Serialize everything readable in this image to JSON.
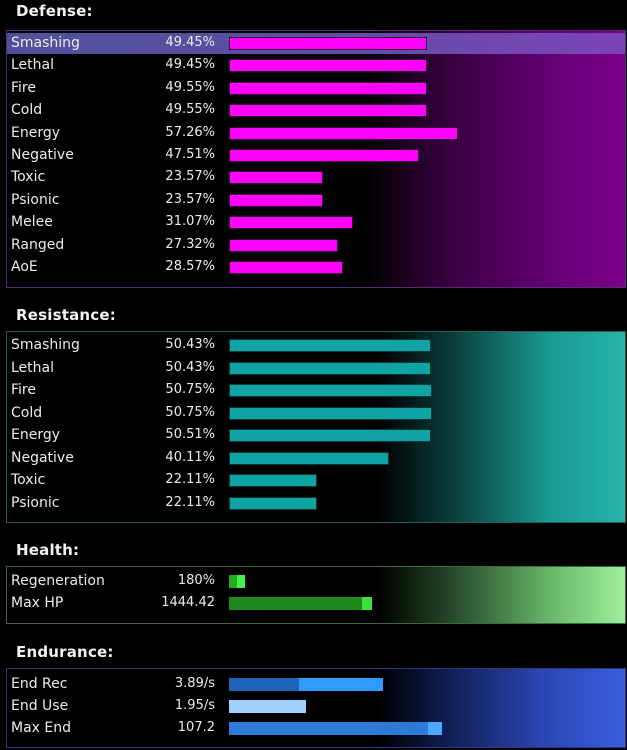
{
  "colors": {
    "defense_bar": "#ff00ff",
    "resistance_bar": "#0fa3a3",
    "health_bar": "#1e8a1e",
    "health_accent": "#3ee03e",
    "endurance_bar": "#2a7fd4",
    "endurance_accent": "#2f9bff"
  },
  "defense": {
    "title": "Defense:",
    "rows": [
      {
        "label": "Smashing",
        "value": "49.45%",
        "pct": 49.45
      },
      {
        "label": "Lethal",
        "value": "49.45%",
        "pct": 49.45
      },
      {
        "label": "Fire",
        "value": "49.55%",
        "pct": 49.55
      },
      {
        "label": "Cold",
        "value": "49.55%",
        "pct": 49.55
      },
      {
        "label": "Energy",
        "value": "57.26%",
        "pct": 57.26
      },
      {
        "label": "Negative",
        "value": "47.51%",
        "pct": 47.51
      },
      {
        "label": "Toxic",
        "value": "23.57%",
        "pct": 23.57
      },
      {
        "label": "Psionic",
        "value": "23.57%",
        "pct": 23.57
      },
      {
        "label": "Melee",
        "value": "31.07%",
        "pct": 31.07
      },
      {
        "label": "Ranged",
        "value": "27.32%",
        "pct": 27.32
      },
      {
        "label": "AoE",
        "value": "28.57%",
        "pct": 28.57
      }
    ]
  },
  "resistance": {
    "title": "Resistance:",
    "rows": [
      {
        "label": "Smashing",
        "value": "50.43%",
        "pct": 50.43
      },
      {
        "label": "Lethal",
        "value": "50.43%",
        "pct": 50.43
      },
      {
        "label": "Fire",
        "value": "50.75%",
        "pct": 50.75
      },
      {
        "label": "Cold",
        "value": "50.75%",
        "pct": 50.75
      },
      {
        "label": "Energy",
        "value": "50.51%",
        "pct": 50.51
      },
      {
        "label": "Negative",
        "value": "40.11%",
        "pct": 40.11
      },
      {
        "label": "Toxic",
        "value": "22.11%",
        "pct": 22.11
      },
      {
        "label": "Psionic",
        "value": "22.11%",
        "pct": 22.11
      }
    ]
  },
  "health": {
    "title": "Health:",
    "rows": [
      {
        "label": "Regeneration",
        "value": "180%"
      },
      {
        "label": "Max HP",
        "value": "1444.42"
      }
    ]
  },
  "endurance": {
    "title": "Endurance:",
    "rows": [
      {
        "label": "End Rec",
        "value": "3.89/s"
      },
      {
        "label": "End Use",
        "value": "1.95/s"
      },
      {
        "label": "Max End",
        "value": "107.2"
      }
    ]
  }
}
